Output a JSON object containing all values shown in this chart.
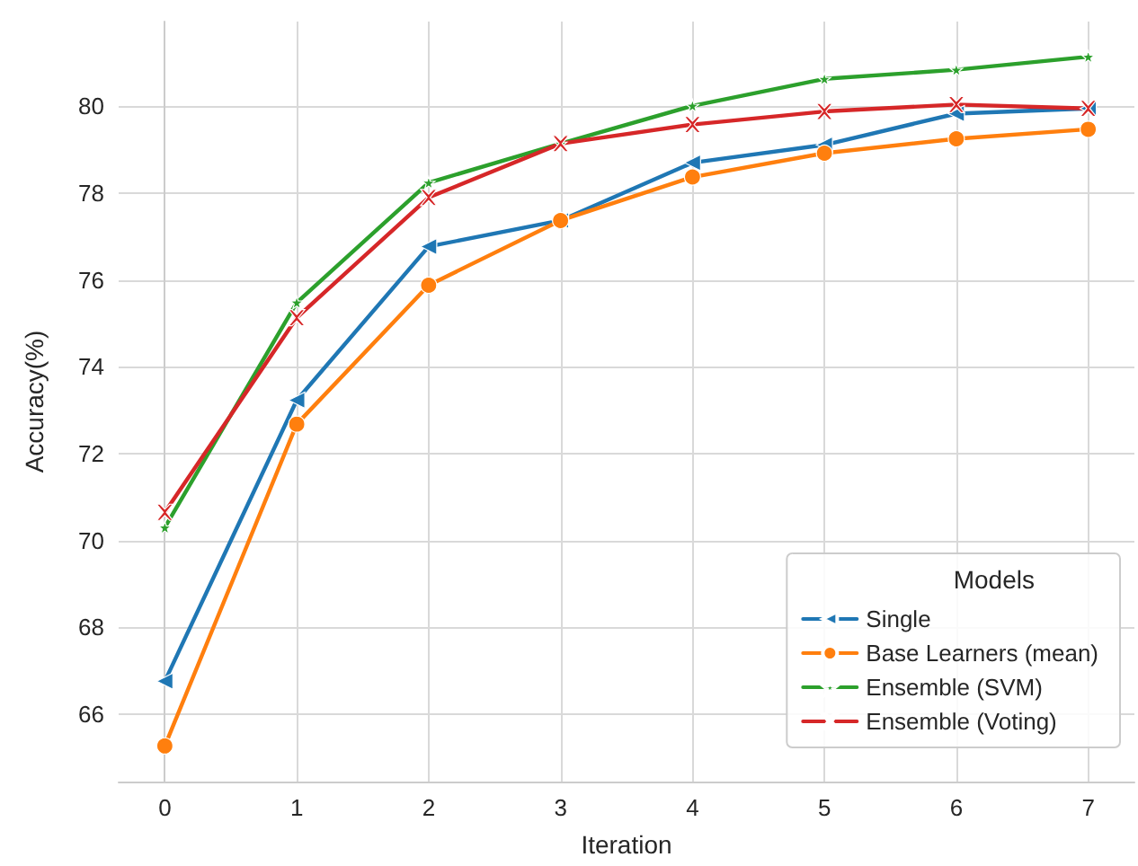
{
  "chart_data": {
    "type": "line",
    "xlabel": "Iteration",
    "ylabel": "Accuracy(%)",
    "legend_title": "Models",
    "x": [
      0,
      1,
      2,
      3,
      4,
      5,
      6,
      7
    ],
    "xlim": [
      -0.35,
      7.35
    ],
    "xticks": [
      0,
      1,
      2,
      3,
      4,
      5,
      6,
      7
    ],
    "ylim": [
      64.45,
      81.95
    ],
    "yticks": [
      66,
      68,
      70,
      72,
      74,
      76,
      78,
      80
    ],
    "grid": true,
    "legend": "bottom right",
    "line_style": "solid",
    "series": [
      {
        "name": "Single",
        "color": "#1f77b4",
        "marker": "triangle-left",
        "values": [
          66.76,
          73.23,
          76.77,
          77.37,
          78.7,
          79.11,
          79.83,
          79.95
        ]
      },
      {
        "name": "Base Learners (mean)",
        "color": "#ff7f0e",
        "marker": "circle",
        "values": [
          65.27,
          72.68,
          75.88,
          77.37,
          78.37,
          78.92,
          79.25,
          79.47
        ]
      },
      {
        "name": "Ensemble (SVM)",
        "color": "#2ca02c",
        "marker": "star",
        "values": [
          70.3,
          75.48,
          78.24,
          79.14,
          80.01,
          80.63,
          80.84,
          81.14
        ]
      },
      {
        "name": "Ensemble (Voting)",
        "color": "#d62728",
        "marker": "cross",
        "values": [
          70.65,
          75.13,
          77.9,
          79.14,
          79.58,
          79.88,
          80.04,
          79.95
        ]
      }
    ]
  }
}
